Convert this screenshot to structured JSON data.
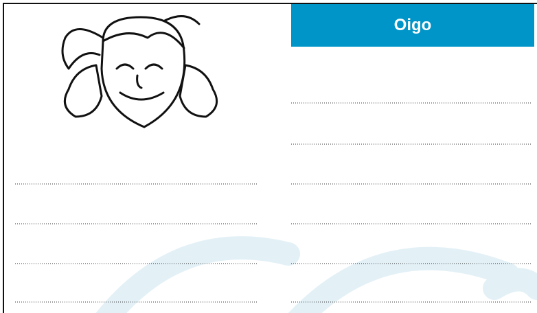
{
  "header": {
    "title": "Oigo"
  }
}
